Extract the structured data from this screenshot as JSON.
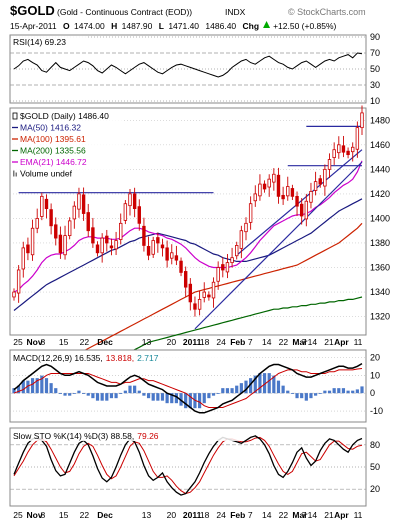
{
  "header": {
    "symbol": "$GOLD",
    "name": "(Gold - Continuous Contract (EOD))",
    "exchange": "INDX",
    "watermark": "© StockCharts.com",
    "quote": {
      "date": "15-Apr-2011",
      "open_label": "O",
      "open": "1474.00",
      "high_label": "H",
      "high": "1487.90",
      "low_label": "L",
      "low": "1471.40",
      "close": "1486.40",
      "chg_label": "Chg",
      "chg": "+12.50 (+0.85%)",
      "chg_arrow": "triangle-up-icon"
    }
  },
  "colors": {
    "price": "#cc0000",
    "ma50": "#1a1a80",
    "ma100": "#cc2200",
    "ma200": "#006600",
    "ema21": "#cc00cc",
    "trend": "#2a2aa0",
    "macd": "#000000",
    "signal": "#cc0000",
    "hist": "#4a78c8",
    "sto_k": "#000000",
    "sto_d": "#cc0000",
    "up_arrow": "#00aa00"
  },
  "chart_data": [
    {
      "panel": "rsi",
      "type": "line",
      "legend": "RSI(14) 69.23",
      "ylim": [
        10,
        90
      ],
      "yticks": [
        90,
        70,
        50,
        30,
        10
      ],
      "overbought": 70,
      "oversold": 30,
      "values": [
        50,
        54,
        60,
        62,
        58,
        55,
        48,
        46,
        52,
        58,
        52,
        50,
        48,
        52,
        56,
        60,
        58,
        54,
        48,
        45,
        50,
        55,
        52,
        48,
        44,
        48,
        52,
        56,
        58,
        54,
        50,
        46,
        44,
        48,
        52,
        55,
        56,
        54,
        52,
        50,
        48,
        46,
        44,
        42,
        40,
        42,
        46,
        52,
        56,
        60,
        62,
        58,
        56,
        60,
        64,
        66,
        62,
        58,
        56,
        52,
        50,
        54,
        58,
        60,
        56,
        52,
        56,
        60,
        62,
        60,
        64,
        66,
        68,
        64,
        70,
        69
      ]
    },
    {
      "panel": "price",
      "type": "candlestick",
      "legend": [
        {
          "key": "title",
          "text": "$GOLD (Daily) 1486.40"
        },
        {
          "key": "ma50",
          "text": "MA(50) 1416.32"
        },
        {
          "key": "ma100",
          "text": "MA(100) 1395.61"
        },
        {
          "key": "ma200",
          "text": "MA(200) 1335.56"
        },
        {
          "key": "ema21",
          "text": "EMA(21) 1446.72"
        },
        {
          "key": "volume",
          "text": "Volume undef"
        }
      ],
      "ylim": [
        1305,
        1490
      ],
      "yticks": [
        1480,
        1460,
        1440,
        1420,
        1400,
        1380,
        1360,
        1340,
        1320
      ],
      "closes": [
        1340,
        1358,
        1376,
        1372,
        1392,
        1400,
        1418,
        1408,
        1394,
        1384,
        1372,
        1386,
        1398,
        1410,
        1420,
        1404,
        1390,
        1380,
        1372,
        1384,
        1380,
        1376,
        1382,
        1396,
        1412,
        1420,
        1408,
        1396,
        1378,
        1370,
        1382,
        1380,
        1376,
        1366,
        1372,
        1366,
        1356,
        1344,
        1332,
        1326,
        1334,
        1340,
        1336,
        1348,
        1360,
        1358,
        1364,
        1368,
        1378,
        1390,
        1396,
        1412,
        1420,
        1428,
        1424,
        1432,
        1436,
        1418,
        1416,
        1426,
        1418,
        1410,
        1402,
        1414,
        1422,
        1430,
        1428,
        1440,
        1448,
        1456,
        1460,
        1454,
        1452,
        1458,
        1474,
        1486
      ],
      "ma50": [
        1325,
        1328,
        1331,
        1334,
        1337,
        1340,
        1343,
        1346,
        1348,
        1350,
        1352,
        1354,
        1356,
        1358,
        1360,
        1362,
        1364,
        1366,
        1368,
        1370,
        1372,
        1374,
        1375,
        1377,
        1379,
        1381,
        1382,
        1384,
        1385,
        1386,
        1387,
        1388,
        1387,
        1386,
        1385,
        1384,
        1383,
        1382,
        1380,
        1379,
        1377,
        1375,
        1373,
        1371,
        1370,
        1368,
        1367,
        1366,
        1365,
        1365,
        1365,
        1366,
        1367,
        1368,
        1369,
        1370,
        1372,
        1374,
        1376,
        1378,
        1380,
        1382,
        1384,
        1386,
        1388,
        1391,
        1394,
        1397,
        1400,
        1403,
        1406,
        1408,
        1410,
        1412,
        1414,
        1416
      ],
      "ma100": [
        1262,
        1264,
        1266,
        1268,
        1270,
        1272,
        1274,
        1276,
        1278,
        1280,
        1282,
        1284,
        1286,
        1288,
        1290,
        1292,
        1294,
        1296,
        1298,
        1300,
        1302,
        1304,
        1306,
        1308,
        1310,
        1312,
        1314,
        1316,
        1318,
        1320,
        1322,
        1324,
        1326,
        1328,
        1330,
        1332,
        1334,
        1336,
        1338,
        1340,
        1341,
        1342,
        1343,
        1344,
        1345,
        1346,
        1347,
        1348,
        1349,
        1350,
        1351,
        1352,
        1353,
        1354,
        1355,
        1356,
        1357,
        1358,
        1359,
        1360,
        1361,
        1362,
        1364,
        1366,
        1368,
        1370,
        1372,
        1374,
        1376,
        1378,
        1380,
        1383,
        1386,
        1389,
        1392,
        1396
      ],
      "ma200": [
        1241,
        1243,
        1245,
        1247,
        1249,
        1251,
        1253,
        1255,
        1257,
        1259,
        1261,
        1263,
        1265,
        1267,
        1269,
        1271,
        1273,
        1275,
        1277,
        1279,
        1281,
        1283,
        1285,
        1287,
        1289,
        1291,
        1293,
        1295,
        1297,
        1299,
        1300,
        1301,
        1302,
        1303,
        1304,
        1305,
        1306,
        1307,
        1308,
        1309,
        1310,
        1311,
        1312,
        1313,
        1314,
        1315,
        1316,
        1317,
        1318,
        1319,
        1320,
        1321,
        1322,
        1323,
        1324,
        1325,
        1326,
        1326,
        1327,
        1327,
        1328,
        1328,
        1329,
        1329,
        1330,
        1330,
        1331,
        1331,
        1332,
        1332,
        1333,
        1333,
        1334,
        1334,
        1335,
        1336
      ],
      "ema21": [
        1340,
        1342,
        1346,
        1349,
        1353,
        1358,
        1364,
        1368,
        1370,
        1371,
        1371,
        1373,
        1375,
        1378,
        1382,
        1384,
        1385,
        1385,
        1384,
        1384,
        1384,
        1383,
        1383,
        1384,
        1387,
        1390,
        1392,
        1392,
        1391,
        1389,
        1388,
        1387,
        1386,
        1384,
        1383,
        1381,
        1379,
        1376,
        1372,
        1368,
        1365,
        1363,
        1361,
        1360,
        1360,
        1360,
        1360,
        1361,
        1362,
        1365,
        1368,
        1372,
        1377,
        1382,
        1386,
        1390,
        1394,
        1396,
        1398,
        1400,
        1402,
        1403,
        1403,
        1404,
        1406,
        1409,
        1411,
        1414,
        1417,
        1421,
        1424,
        1427,
        1429,
        1432,
        1438,
        1447
      ],
      "trendlines": [
        {
          "x": [
            1,
            43
          ],
          "y": [
            1421,
            1421
          ]
        },
        {
          "x": [
            59,
            75
          ],
          "y": [
            1443,
            1443
          ]
        },
        {
          "x": [
            63,
            75
          ],
          "y": [
            1475,
            1475
          ]
        },
        {
          "x": [
            39,
            75
          ],
          "y": [
            1310,
            1446
          ]
        },
        {
          "x": [
            48,
            75
          ],
          "y": [
            1370,
            1456
          ]
        }
      ]
    },
    {
      "panel": "macd",
      "type": "line",
      "legend": [
        {
          "key": "macd",
          "text": "MACD(12,26,9) 16.535,"
        },
        {
          "key": "signal",
          "text": "13.818,"
        },
        {
          "key": "hist",
          "text": "2.717"
        }
      ],
      "ylim": [
        -15,
        23
      ],
      "yticks": [
        20,
        10,
        0,
        -10
      ],
      "macd": [
        2,
        4,
        7,
        9,
        11,
        13,
        15,
        16,
        15,
        13,
        11,
        10,
        10,
        11,
        12,
        11,
        10,
        8,
        6,
        5,
        4,
        4,
        4,
        5,
        7,
        9,
        10,
        9,
        7,
        5,
        4,
        3,
        2,
        0,
        -1,
        -2,
        -4,
        -6,
        -8,
        -10,
        -11,
        -11,
        -10,
        -9,
        -8,
        -6,
        -5,
        -4,
        -2,
        0,
        2,
        5,
        8,
        11,
        13,
        15,
        16,
        16,
        15,
        14,
        13,
        11,
        10,
        9,
        9,
        10,
        11,
        12,
        13,
        14,
        15,
        15,
        14,
        14,
        15,
        16.5
      ],
      "signal": [
        0,
        1,
        2,
        4,
        5,
        7,
        8,
        10,
        11,
        11,
        11,
        11,
        11,
        11,
        11,
        11,
        11,
        10,
        9,
        8,
        7,
        6,
        6,
        5,
        6,
        6,
        7,
        8,
        8,
        7,
        7,
        6,
        5,
        4,
        3,
        2,
        1,
        0,
        -2,
        -4,
        -5,
        -7,
        -8,
        -8,
        -8,
        -8,
        -7,
        -6,
        -5,
        -4,
        -3,
        -1,
        1,
        3,
        5,
        7,
        9,
        11,
        12,
        13,
        13,
        13,
        12,
        12,
        11,
        11,
        11,
        11,
        12,
        12,
        13,
        13,
        13,
        13,
        13.5,
        13.8
      ]
    },
    {
      "panel": "sto",
      "type": "line",
      "legend": [
        {
          "key": "k",
          "text": "Slow STO %K(14) %D(3) 88.58,"
        },
        {
          "key": "d",
          "text": "79.26"
        }
      ],
      "ylim": [
        0,
        100
      ],
      "yticks": [
        80,
        50,
        20
      ],
      "k": [
        40,
        55,
        70,
        82,
        88,
        90,
        86,
        78,
        60,
        45,
        38,
        40,
        55,
        70,
        82,
        86,
        80,
        65,
        48,
        35,
        30,
        36,
        50,
        66,
        80,
        88,
        84,
        70,
        52,
        38,
        32,
        36,
        42,
        30,
        22,
        16,
        12,
        14,
        22,
        30,
        42,
        56,
        68,
        78,
        86,
        90,
        88,
        86,
        84,
        82,
        86,
        90,
        92,
        88,
        80,
        68,
        52,
        40,
        36,
        44,
        56,
        70,
        76,
        62,
        52,
        58,
        72,
        82,
        88,
        86,
        80,
        74,
        70,
        80,
        86,
        88.58
      ],
      "d": [
        38,
        48,
        58,
        70,
        80,
        86,
        88,
        84,
        74,
        62,
        50,
        42,
        44,
        54,
        68,
        78,
        82,
        78,
        66,
        52,
        40,
        34,
        38,
        50,
        64,
        78,
        84,
        82,
        72,
        58,
        44,
        36,
        36,
        38,
        32,
        24,
        18,
        14,
        16,
        22,
        30,
        42,
        54,
        66,
        76,
        84,
        88,
        88,
        86,
        84,
        84,
        86,
        89,
        90,
        86,
        78,
        66,
        54,
        44,
        40,
        44,
        56,
        68,
        70,
        64,
        58,
        60,
        70,
        80,
        85,
        85,
        80,
        75,
        74,
        78,
        79.26
      ]
    }
  ],
  "x_axis": {
    "labels": [
      "25",
      "Nov",
      "8",
      "15",
      "22",
      "Dec",
      "13",
      "20",
      "2011",
      "18",
      "24",
      "Feb",
      "7",
      "14",
      "22",
      "Mar",
      "7",
      "14",
      "21",
      "Apr",
      "11"
    ],
    "label_index": [
      0,
      4,
      6,
      11,
      16,
      21,
      31,
      37,
      42,
      45,
      49,
      53,
      56,
      60,
      64,
      68,
      69,
      71,
      75,
      78,
      82
    ],
    "bold_labels": [
      "Nov",
      "Dec",
      "2011",
      "Feb",
      "Mar",
      "Apr"
    ],
    "tick_positions_note": ""
  }
}
